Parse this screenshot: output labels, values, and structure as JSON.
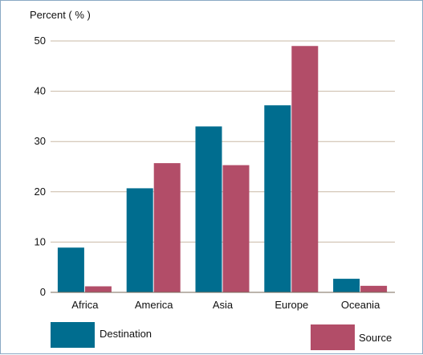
{
  "chart_data": {
    "type": "bar",
    "ylabel": "Percent ( % )",
    "xlabel": "",
    "title": "",
    "categories": [
      "Africa",
      "America",
      "Asia",
      "Europe",
      "Oceania"
    ],
    "series": [
      {
        "name": "Destination",
        "color": "#006d8f",
        "values": [
          8.9,
          20.7,
          33.0,
          37.2,
          2.7
        ]
      },
      {
        "name": "Source",
        "color": "#b24d68",
        "values": [
          1.2,
          25.7,
          25.3,
          49.0,
          1.3
        ]
      }
    ],
    "ylim": [
      0,
      50
    ],
    "yticks": [
      "0",
      "10",
      "20",
      "30",
      "40",
      "50"
    ],
    "grid": true,
    "legend": "bottom"
  }
}
